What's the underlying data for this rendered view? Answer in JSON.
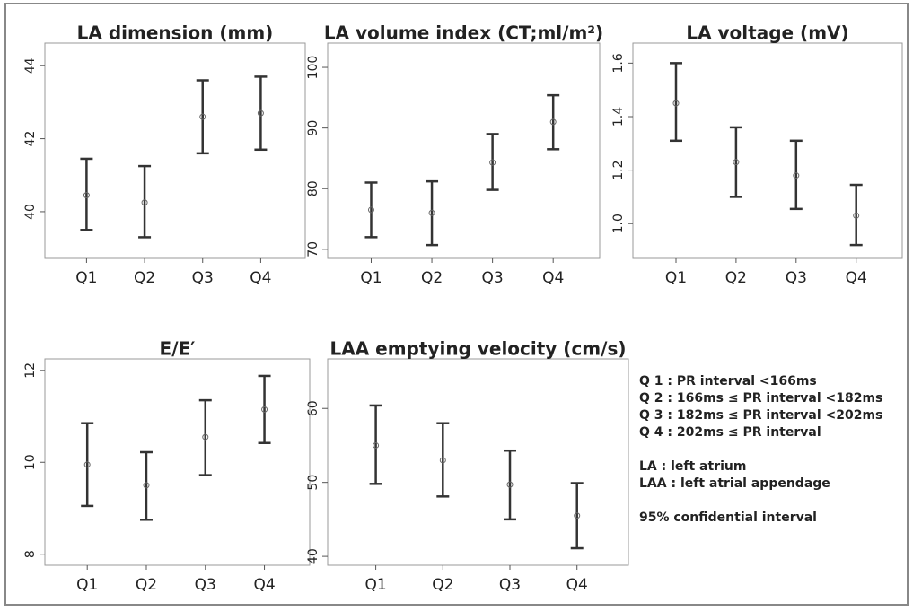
{
  "chart_data": [
    {
      "type": "errorbar",
      "title": "LA dimension (mm)",
      "categories": [
        "Q1",
        "Q2",
        "Q3",
        "Q4"
      ],
      "values": [
        40.45,
        40.25,
        42.6,
        42.7
      ],
      "lower": [
        39.5,
        39.3,
        41.6,
        41.7
      ],
      "upper": [
        41.45,
        41.25,
        43.6,
        43.7
      ],
      "ylim": [
        38.72,
        44.62
      ],
      "yticks": [
        40,
        42,
        44
      ],
      "color": "#333333"
    },
    {
      "type": "errorbar",
      "title": "LA volume index (CT;ml/m²)",
      "categories": [
        "Q1",
        "Q2",
        "Q3",
        "Q4"
      ],
      "values": [
        76.5,
        76,
        84.3,
        91
      ],
      "lower": [
        72,
        70.7,
        79.8,
        86.5
      ],
      "upper": [
        81,
        81.2,
        89,
        95.4
      ],
      "ylim": [
        68.5,
        104
      ],
      "yticks": [
        70,
        80,
        90,
        100
      ],
      "color": "#333333"
    },
    {
      "type": "errorbar",
      "title": "LA voltage (mV)",
      "categories": [
        "Q1",
        "Q2",
        "Q3",
        "Q4"
      ],
      "values": [
        1.45,
        1.23,
        1.18,
        1.03
      ],
      "lower": [
        1.31,
        1.1,
        1.055,
        0.92
      ],
      "upper": [
        1.6,
        1.36,
        1.31,
        1.145
      ],
      "ylim": [
        0.87,
        1.675
      ],
      "yticks": [
        {
          "value": 1,
          "label": "1.0"
        },
        1.2,
        1.4,
        1.6
      ],
      "color": "#333333"
    },
    {
      "type": "errorbar",
      "title": "E/E′",
      "categories": [
        "Q1",
        "Q2",
        "Q3",
        "Q4"
      ],
      "values": [
        9.95,
        9.5,
        10.55,
        11.15
      ],
      "lower": [
        9.05,
        8.75,
        9.72,
        10.42
      ],
      "upper": [
        10.85,
        10.22,
        11.35,
        11.88
      ],
      "ylim": [
        7.76,
        12.25
      ],
      "yticks": [
        8,
        10,
        12
      ],
      "color": "#333333"
    },
    {
      "type": "errorbar",
      "title": "LAA emptying velocity (cm/s)",
      "categories": [
        "Q1",
        "Q2",
        "Q3",
        "Q4"
      ],
      "values": [
        55,
        53,
        49.7,
        45.5
      ],
      "lower": [
        49.8,
        48.1,
        45,
        41.1
      ],
      "upper": [
        60.4,
        58,
        54.3,
        49.9
      ],
      "ylim": [
        38.8,
        66.7
      ],
      "yticks": [
        40,
        50,
        60
      ],
      "color": "#333333"
    }
  ],
  "notes": [
    [
      "Q 1 : PR interval <166ms",
      "Q 2 : 166ms ≤ PR interval <182ms",
      "Q 3 : 182ms ≤ PR interval <202ms",
      "Q 4 : 202ms ≤ PR interval"
    ],
    [
      "LA : left atrium",
      "LAA : left atrial appendage"
    ],
    [
      "95% confidential interval"
    ]
  ]
}
